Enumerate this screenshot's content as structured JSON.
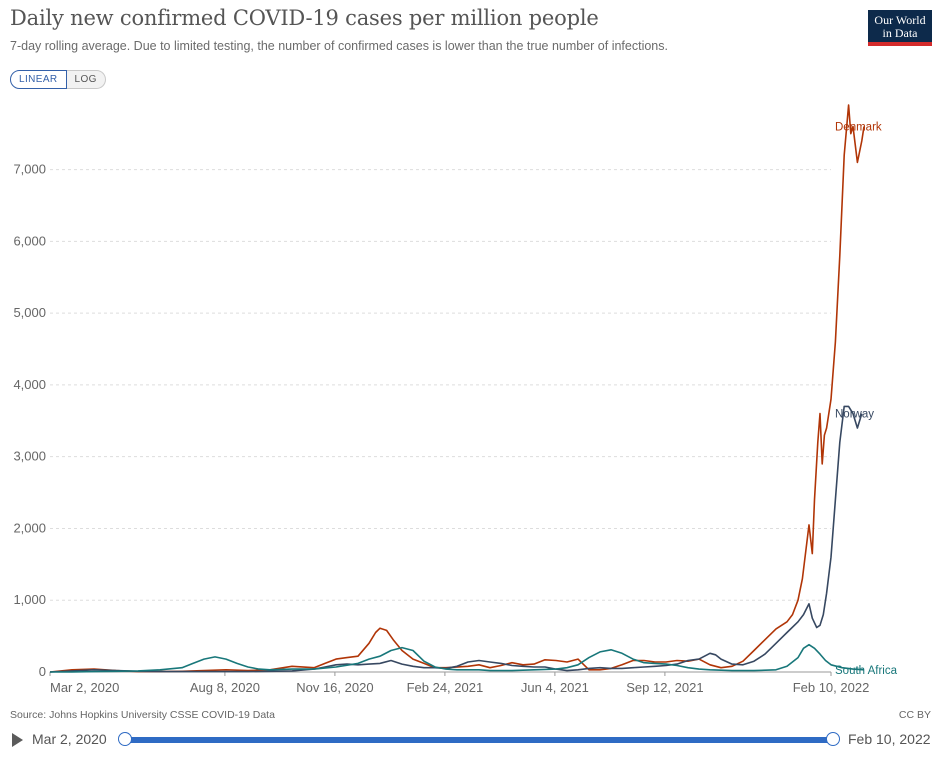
{
  "header": {
    "title": "Daily new confirmed COVID-19 cases per million people",
    "subtitle": "7-day rolling average. Due to limited testing, the number of confirmed cases is lower than the true number of infections.",
    "logo_line1": "Our World",
    "logo_line2": "in Data"
  },
  "scale_toggle": {
    "linear": "LINEAR",
    "log": "LOG",
    "selected": "LINEAR"
  },
  "footer": {
    "source": "Source: Johns Hopkins University CSSE COVID-19 Data",
    "license": "CC BY"
  },
  "timeline": {
    "start_label": "Mar 2, 2020",
    "end_label": "Feb 10, 2022"
  },
  "chart_data": {
    "type": "line",
    "title": "Daily new confirmed COVID-19 cases per million people",
    "xlabel": "",
    "ylabel": "",
    "x_tick_labels": [
      "Mar 2, 2020",
      "Aug 8, 2020",
      "Nov 16, 2020",
      "Feb 24, 2021",
      "Jun 4, 2021",
      "Sep 12, 2021",
      "Feb 10, 2022"
    ],
    "x_tick_days": [
      0,
      159,
      259,
      359,
      459,
      559,
      710
    ],
    "y_tick_labels": [
      "0",
      "1,000",
      "2,000",
      "3,000",
      "4,000",
      "5,000",
      "6,000",
      "7,000"
    ],
    "y_ticks": [
      0,
      1000,
      2000,
      3000,
      4000,
      5000,
      6000,
      7000
    ],
    "ylim": [
      0,
      7900
    ],
    "xlim_days": [
      0,
      710
    ],
    "grid": "horizontal dashed",
    "legend": "line-end labels",
    "series": [
      {
        "name": "Denmark",
        "color": "#b13507",
        "points": [
          [
            0,
            0
          ],
          [
            20,
            30
          ],
          [
            40,
            40
          ],
          [
            60,
            20
          ],
          [
            80,
            5
          ],
          [
            100,
            5
          ],
          [
            120,
            10
          ],
          [
            140,
            20
          ],
          [
            160,
            30
          ],
          [
            180,
            20
          ],
          [
            200,
            30
          ],
          [
            220,
            80
          ],
          [
            240,
            60
          ],
          [
            250,
            120
          ],
          [
            260,
            180
          ],
          [
            270,
            200
          ],
          [
            280,
            220
          ],
          [
            290,
            400
          ],
          [
            296,
            550
          ],
          [
            300,
            610
          ],
          [
            306,
            580
          ],
          [
            312,
            450
          ],
          [
            320,
            300
          ],
          [
            330,
            180
          ],
          [
            340,
            120
          ],
          [
            350,
            60
          ],
          [
            360,
            60
          ],
          [
            380,
            80
          ],
          [
            390,
            100
          ],
          [
            400,
            60
          ],
          [
            410,
            90
          ],
          [
            420,
            130
          ],
          [
            430,
            100
          ],
          [
            440,
            110
          ],
          [
            450,
            170
          ],
          [
            460,
            160
          ],
          [
            470,
            140
          ],
          [
            480,
            180
          ],
          [
            490,
            30
          ],
          [
            500,
            30
          ],
          [
            510,
            50
          ],
          [
            520,
            100
          ],
          [
            530,
            160
          ],
          [
            540,
            160
          ],
          [
            550,
            140
          ],
          [
            560,
            140
          ],
          [
            570,
            160
          ],
          [
            580,
            150
          ],
          [
            590,
            180
          ],
          [
            600,
            100
          ],
          [
            610,
            60
          ],
          [
            620,
            80
          ],
          [
            630,
            150
          ],
          [
            640,
            300
          ],
          [
            650,
            450
          ],
          [
            660,
            600
          ],
          [
            670,
            700
          ],
          [
            675,
            800
          ],
          [
            680,
            1000
          ],
          [
            684,
            1300
          ],
          [
            688,
            1800
          ],
          [
            690,
            2050
          ],
          [
            693,
            1650
          ],
          [
            695,
            2400
          ],
          [
            698,
            3200
          ],
          [
            700,
            3600
          ],
          [
            702,
            2900
          ],
          [
            704,
            3300
          ],
          [
            706,
            3400
          ],
          [
            708,
            3600
          ],
          [
            710,
            3800
          ],
          [
            714,
            4600
          ],
          [
            718,
            5800
          ],
          [
            722,
            7200
          ],
          [
            726,
            7900
          ],
          [
            728,
            7500
          ],
          [
            730,
            7600
          ],
          [
            734,
            7100
          ],
          [
            738,
            7400
          ],
          [
            740,
            7600
          ]
        ]
      },
      {
        "name": "Norway",
        "color": "#374861",
        "points": [
          [
            0,
            0
          ],
          [
            20,
            15
          ],
          [
            40,
            30
          ],
          [
            60,
            20
          ],
          [
            80,
            10
          ],
          [
            100,
            5
          ],
          [
            120,
            5
          ],
          [
            140,
            5
          ],
          [
            160,
            5
          ],
          [
            180,
            5
          ],
          [
            200,
            10
          ],
          [
            220,
            15
          ],
          [
            240,
            40
          ],
          [
            250,
            70
          ],
          [
            260,
            100
          ],
          [
            270,
            110
          ],
          [
            280,
            100
          ],
          [
            290,
            110
          ],
          [
            300,
            120
          ],
          [
            310,
            160
          ],
          [
            320,
            110
          ],
          [
            330,
            80
          ],
          [
            340,
            60
          ],
          [
            350,
            60
          ],
          [
            360,
            50
          ],
          [
            370,
            80
          ],
          [
            380,
            140
          ],
          [
            390,
            160
          ],
          [
            400,
            140
          ],
          [
            410,
            120
          ],
          [
            420,
            90
          ],
          [
            430,
            80
          ],
          [
            440,
            70
          ],
          [
            450,
            70
          ],
          [
            460,
            40
          ],
          [
            470,
            20
          ],
          [
            480,
            30
          ],
          [
            490,
            50
          ],
          [
            500,
            60
          ],
          [
            510,
            50
          ],
          [
            520,
            50
          ],
          [
            530,
            60
          ],
          [
            540,
            70
          ],
          [
            550,
            80
          ],
          [
            560,
            90
          ],
          [
            570,
            110
          ],
          [
            580,
            160
          ],
          [
            590,
            180
          ],
          [
            600,
            260
          ],
          [
            605,
            240
          ],
          [
            610,
            180
          ],
          [
            620,
            110
          ],
          [
            630,
            100
          ],
          [
            640,
            150
          ],
          [
            650,
            250
          ],
          [
            660,
            400
          ],
          [
            670,
            550
          ],
          [
            680,
            700
          ],
          [
            685,
            800
          ],
          [
            690,
            950
          ],
          [
            693,
            750
          ],
          [
            697,
            620
          ],
          [
            700,
            650
          ],
          [
            703,
            800
          ],
          [
            706,
            1100
          ],
          [
            710,
            1600
          ],
          [
            714,
            2400
          ],
          [
            718,
            3200
          ],
          [
            722,
            3700
          ],
          [
            726,
            3700
          ],
          [
            730,
            3600
          ],
          [
            734,
            3400
          ],
          [
            738,
            3600
          ]
        ]
      },
      {
        "name": "South Africa",
        "color": "#18777a",
        "points": [
          [
            0,
            0
          ],
          [
            20,
            0
          ],
          [
            40,
            5
          ],
          [
            60,
            10
          ],
          [
            80,
            15
          ],
          [
            100,
            30
          ],
          [
            120,
            60
          ],
          [
            130,
            120
          ],
          [
            140,
            180
          ],
          [
            150,
            210
          ],
          [
            160,
            180
          ],
          [
            170,
            120
          ],
          [
            180,
            70
          ],
          [
            190,
            40
          ],
          [
            200,
            30
          ],
          [
            220,
            40
          ],
          [
            240,
            40
          ],
          [
            260,
            70
          ],
          [
            280,
            120
          ],
          [
            290,
            180
          ],
          [
            300,
            220
          ],
          [
            310,
            300
          ],
          [
            320,
            340
          ],
          [
            330,
            300
          ],
          [
            340,
            150
          ],
          [
            350,
            70
          ],
          [
            360,
            40
          ],
          [
            370,
            30
          ],
          [
            380,
            30
          ],
          [
            390,
            30
          ],
          [
            400,
            20
          ],
          [
            420,
            20
          ],
          [
            440,
            30
          ],
          [
            460,
            40
          ],
          [
            470,
            60
          ],
          [
            480,
            100
          ],
          [
            490,
            200
          ],
          [
            500,
            280
          ],
          [
            510,
            310
          ],
          [
            520,
            260
          ],
          [
            530,
            180
          ],
          [
            540,
            130
          ],
          [
            550,
            120
          ],
          [
            560,
            110
          ],
          [
            570,
            90
          ],
          [
            580,
            60
          ],
          [
            590,
            40
          ],
          [
            600,
            30
          ],
          [
            620,
            20
          ],
          [
            640,
            20
          ],
          [
            660,
            30
          ],
          [
            670,
            80
          ],
          [
            680,
            200
          ],
          [
            685,
            330
          ],
          [
            690,
            380
          ],
          [
            695,
            330
          ],
          [
            700,
            250
          ],
          [
            705,
            160
          ],
          [
            710,
            100
          ],
          [
            720,
            60
          ],
          [
            730,
            40
          ],
          [
            740,
            30
          ]
        ]
      }
    ]
  }
}
